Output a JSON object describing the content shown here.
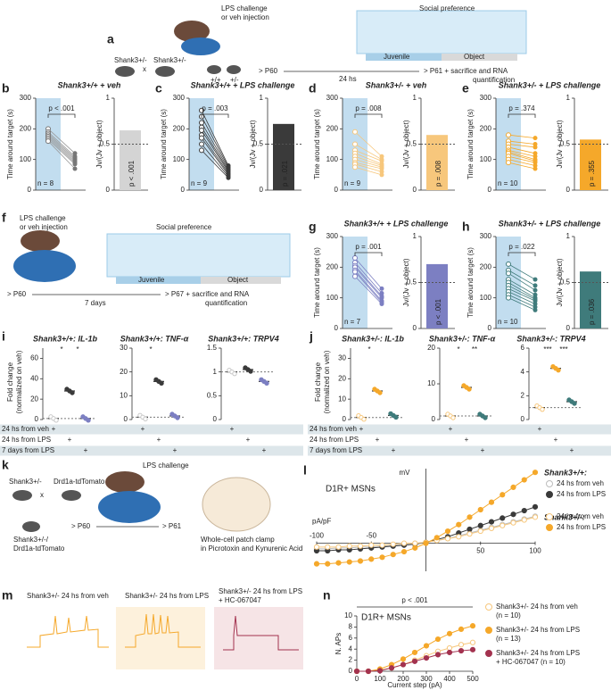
{
  "a": {
    "label": "a",
    "injection_1": "LPS challenge",
    "injection_2": "or veh injection",
    "social": "Social preference",
    "juvenile": "Juvenile",
    "object": "Object",
    "parent1": "Shank3+/-",
    "parent2": "Shank3+/-",
    "cross": "x",
    "wt": "+/+",
    "het": "+/-",
    "start": "> P60",
    "time": "24 hs",
    "end_1": "> P61 + sacrifice and RNA",
    "end_2": "quantification"
  },
  "f": {
    "label": "f",
    "injection_1": "LPS challenge",
    "injection_2": "or veh injection",
    "social": "Social preference",
    "juvenile": "Juvenile",
    "object": "Object",
    "start": "> P60",
    "time": "7 days",
    "end_1": "> P67 + sacrifice and RNA",
    "end_2": "quantification"
  },
  "paired_axes": {
    "ylabel": "Time around target (s)",
    "y2label": "Jv/(Jv + object)",
    "ylim": [
      0,
      300
    ],
    "yticks": [
      0,
      100,
      200,
      300
    ],
    "y2lim": [
      0,
      1
    ],
    "y2ticks": [
      0,
      0.5,
      1
    ]
  },
  "paired": [
    {
      "label": "b",
      "title": "Shank3+/+ + veh",
      "n": "n = 8",
      "p": "p < .001",
      "p_bar": "p < .001",
      "color": "#d4d4d4",
      "pre": [
        200,
        190,
        185,
        180,
        175,
        170,
        165,
        160
      ],
      "post": [
        120,
        110,
        105,
        100,
        95,
        90,
        85,
        70
      ],
      "jv_mean": 0.65
    },
    {
      "label": "c",
      "title": "Shank3+/+ + LPS challenge",
      "n": "n = 9",
      "p": "p = .003",
      "p_bar": "p = .021",
      "color": "#3a3a3a",
      "pre": [
        260,
        240,
        220,
        205,
        195,
        180,
        170,
        150,
        130
      ],
      "post": [
        80,
        75,
        70,
        65,
        60,
        55,
        50,
        45,
        40
      ],
      "jv_mean": 0.72
    },
    {
      "label": "d",
      "title": "Shank3+/- + veh",
      "n": "n = 9",
      "p": "p = .008",
      "p_bar": "p = .008",
      "color": "#f7c77c",
      "pre": [
        190,
        150,
        130,
        120,
        110,
        100,
        90,
        85,
        75
      ],
      "post": [
        110,
        100,
        95,
        85,
        80,
        75,
        70,
        60,
        50
      ],
      "jv_mean": 0.6
    },
    {
      "label": "e",
      "title": "Shank3+/- + LPS challenge",
      "n": "n = 10",
      "p": "p = .374",
      "p_bar": "p = .355",
      "color": "#f5a82a",
      "pre": [
        180,
        160,
        150,
        140,
        130,
        125,
        120,
        110,
        100,
        90
      ],
      "post": [
        170,
        150,
        140,
        120,
        110,
        100,
        95,
        90,
        80,
        70
      ],
      "jv_mean": 0.55
    },
    {
      "label": "g",
      "title": "Shank3+/+ + LPS challenge",
      "n": "n = 7",
      "p": "p = .001",
      "p_bar": "p < .001",
      "color": "#7c7fc2",
      "pre": [
        230,
        215,
        205,
        200,
        190,
        185,
        170
      ],
      "post": [
        130,
        115,
        105,
        100,
        90,
        85,
        80
      ],
      "jv_mean": 0.7
    },
    {
      "label": "h",
      "title": "Shank3+/- + LPS challenge",
      "n": "n = 10",
      "p": "p = .022",
      "p_bar": "p = .036",
      "color": "#3f7b7b",
      "pre": [
        210,
        190,
        180,
        160,
        150,
        140,
        130,
        120,
        110,
        100
      ],
      "post": [
        160,
        140,
        125,
        110,
        100,
        95,
        90,
        80,
        70,
        60
      ],
      "jv_mean": 0.62
    }
  ],
  "expr": {
    "ylabel_1": "Fold change",
    "ylabel_2": "(normalized on veh)",
    "plus": "+",
    "rows": [
      "24 hs from veh",
      "24 hs from LPS",
      "7 days from LPS"
    ],
    "groups": [
      {
        "label": "i",
        "colors": [
          "#c8c8c8",
          "#3a3a3a",
          "#7c7fc2"
        ],
        "plots": [
          {
            "title": "Shank3+/+: IL-1b",
            "ylim": [
              0,
              70
            ],
            "yticks": [
              0,
              20,
              40,
              60
            ],
            "means": [
              1,
              28,
              1
            ],
            "sig": [
              "*",
              "*"
            ]
          },
          {
            "title": "Shank3+/+: TNF-α",
            "ylim": [
              0,
              30
            ],
            "yticks": [
              0,
              10,
              20,
              30
            ],
            "means": [
              1,
              16,
              1.5
            ],
            "sig": [
              "*"
            ]
          },
          {
            "title": "Shank3+/+: TRPV4",
            "ylim": [
              0,
              1.5
            ],
            "yticks": [
              0,
              0.5,
              1,
              1.5
            ],
            "means": [
              1,
              1.05,
              0.8
            ],
            "sig": []
          }
        ]
      },
      {
        "label": "j",
        "colors": [
          "#f7c77c",
          "#f5a82a",
          "#3f7b7b"
        ],
        "plots": [
          {
            "title": "Shank3+/-: IL-1b",
            "ylim": [
              0,
              35
            ],
            "yticks": [
              0,
              10,
              20,
              30
            ],
            "means": [
              1,
              14,
              2
            ],
            "sig": [
              "*"
            ]
          },
          {
            "title": "Shank3+/-: TNF-α",
            "ylim": [
              0,
              20
            ],
            "yticks": [
              0,
              10,
              20
            ],
            "means": [
              1,
              9,
              1
            ],
            "sig": [
              "*",
              "**"
            ]
          },
          {
            "title": "Shank3+/-: TRPV4",
            "ylim": [
              0,
              6
            ],
            "yticks": [
              0,
              2,
              4,
              6
            ],
            "means": [
              1,
              4.3,
              1.5
            ],
            "sig": [
              "***",
              "***"
            ]
          }
        ]
      }
    ]
  },
  "k": {
    "label": "k",
    "parent1": "Shank3+/-",
    "cross": "x",
    "parent2": "Drd1a-tdTomato",
    "child_1": "Shank3+/-/",
    "child_2": "Drd1a-tdTomato",
    "challenge": "LPS challenge",
    "start": "> P60",
    "end": "> P61",
    "method_1": "Whole-cell patch clamp",
    "method_2": "in Picrotoxin and Kynurenic Acid"
  },
  "l": {
    "label": "l",
    "title": "D1R+ MSNs",
    "ylabel": "pA/pF",
    "y2label": "mV",
    "xlim": [
      -100,
      100
    ],
    "ylim": [
      -1.5,
      4
    ],
    "xticks": [
      -100,
      -50,
      50,
      100
    ],
    "x": [
      -100,
      -90,
      -80,
      -70,
      -60,
      -50,
      -40,
      -30,
      -20,
      -10,
      0,
      10,
      20,
      30,
      40,
      50,
      60,
      70,
      80,
      90,
      100
    ],
    "legend_heads": [
      "Shank3+/+:",
      "Shank3+/-:"
    ],
    "series": [
      {
        "name": "24 hs from veh",
        "color": "#bdbdbd",
        "filled": false,
        "values": [
          -0.3,
          -0.3,
          -0.25,
          -0.25,
          -0.2,
          -0.2,
          -0.15,
          -0.1,
          -0.05,
          0,
          0.05,
          0.15,
          0.25,
          0.4,
          0.55,
          0.7,
          0.85,
          1.0,
          1.15,
          1.3,
          1.45
        ]
      },
      {
        "name": "24 hs from LPS",
        "color": "#3a3a3a",
        "filled": true,
        "values": [
          -0.4,
          -0.4,
          -0.35,
          -0.35,
          -0.3,
          -0.25,
          -0.2,
          -0.15,
          -0.1,
          -0.05,
          0.05,
          0.2,
          0.35,
          0.55,
          0.75,
          0.95,
          1.15,
          1.35,
          1.55,
          1.75,
          1.95
        ]
      },
      {
        "name": "24 hs from veh",
        "color": "#f7c77c",
        "filled": false,
        "values": [
          -0.2,
          -0.2,
          -0.2,
          -0.15,
          -0.15,
          -0.1,
          -0.1,
          -0.05,
          0,
          0,
          0.05,
          0.15,
          0.25,
          0.35,
          0.5,
          0.65,
          0.8,
          0.95,
          1.1,
          1.25,
          1.4
        ]
      },
      {
        "name": "24 hs from LPS",
        "color": "#f5a82a",
        "filled": true,
        "values": [
          -1.1,
          -1.1,
          -1.05,
          -1.0,
          -0.95,
          -0.85,
          -0.75,
          -0.6,
          -0.45,
          -0.25,
          0,
          0.3,
          0.65,
          1.0,
          1.4,
          1.8,
          2.2,
          2.6,
          3.0,
          3.4,
          3.8
        ]
      }
    ]
  },
  "m": {
    "label": "m",
    "titles": [
      "Shank3+/- 24 hs from veh",
      "Shank3+/- 24 hs from LPS",
      "Shank3+/- 24 hs from LPS"
    ],
    "title_extra": "+ HC-067047"
  },
  "n": {
    "label": "n",
    "title": "D1R+ MSNs",
    "p": "p < .001",
    "xlabel": "Current step (pA)",
    "ylabel": "N. APs",
    "xlim": [
      0,
      500
    ],
    "xticks": [
      0,
      100,
      200,
      300,
      400,
      500
    ],
    "ylim": [
      0,
      10
    ],
    "yticks": [
      0,
      2,
      4,
      6,
      8,
      10
    ],
    "x": [
      0,
      50,
      100,
      150,
      200,
      250,
      300,
      350,
      400,
      450,
      500
    ],
    "series": [
      {
        "name": "Shank3+/- 24 hs from veh",
        "sub": "(n = 10)",
        "color": "#f7c77c",
        "filled": false,
        "values": [
          0,
          0,
          0.2,
          0.6,
          1.2,
          2,
          2.8,
          3.6,
          4.2,
          4.8,
          5.2
        ]
      },
      {
        "name": "Shank3+/- 24 hs from LPS",
        "sub": "(n = 13)",
        "color": "#f5a82a",
        "filled": true,
        "values": [
          0,
          0,
          0.4,
          1.2,
          2.2,
          3.4,
          4.6,
          5.8,
          6.8,
          7.6,
          8.2
        ]
      },
      {
        "name": "Shank3+/- 24 hs from LPS",
        "sub": "+ HC-067047 (n = 10)",
        "color": "#a3324f",
        "filled": true,
        "values": [
          0,
          0,
          0.1,
          0.6,
          1.2,
          1.8,
          2.4,
          3,
          3.4,
          3.7,
          3.9
        ]
      }
    ]
  }
}
